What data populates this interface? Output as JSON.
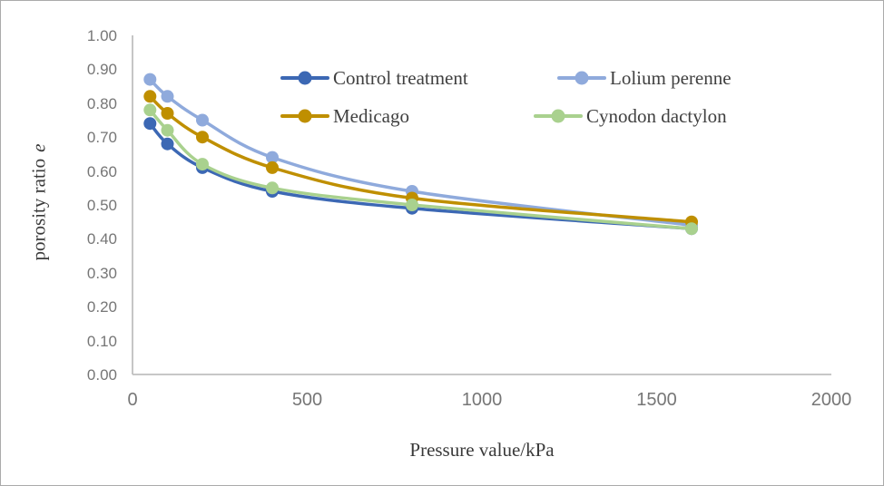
{
  "figure": {
    "background_color": "#ffffff",
    "border_color": "#aaaaaa"
  },
  "chart_data": {
    "type": "line",
    "title": "",
    "xlabel": "Pressure value/kPa",
    "ylabel": "porosity ratio",
    "ylabel_italic_suffix": "e",
    "xlim": [
      0,
      2000
    ],
    "ylim": [
      0.0,
      1.0
    ],
    "x_ticks": [
      0,
      500,
      1000,
      1500,
      2000
    ],
    "y_ticks": [
      "1.00",
      "0.90",
      "0.80",
      "0.70",
      "0.60",
      "0.50",
      "0.40",
      "0.30",
      "0.20",
      "0.10",
      "0.00"
    ],
    "grid": false,
    "axis_color": "#bfbfbf",
    "tick_label_color": "#767676",
    "legend_position": "inside-top-center-two-columns",
    "marker_style": "filled-circle",
    "line_style": "smooth",
    "x": [
      50,
      100,
      200,
      400,
      800,
      1600
    ],
    "series": [
      {
        "name": "Control treatment",
        "color": "#3c68b4",
        "values": [
          0.74,
          0.68,
          0.61,
          0.54,
          0.49,
          0.43
        ]
      },
      {
        "name": "Lolium perenne",
        "color": "#8faadc",
        "values": [
          0.87,
          0.82,
          0.75,
          0.64,
          0.54,
          0.44
        ]
      },
      {
        "name": "Medicago",
        "color": "#bf8f00",
        "values": [
          0.82,
          0.77,
          0.7,
          0.61,
          0.52,
          0.45
        ]
      },
      {
        "name": "Cynodon dactylon",
        "color": "#a9d18e",
        "values": [
          0.78,
          0.72,
          0.62,
          0.55,
          0.5,
          0.43
        ]
      }
    ]
  }
}
